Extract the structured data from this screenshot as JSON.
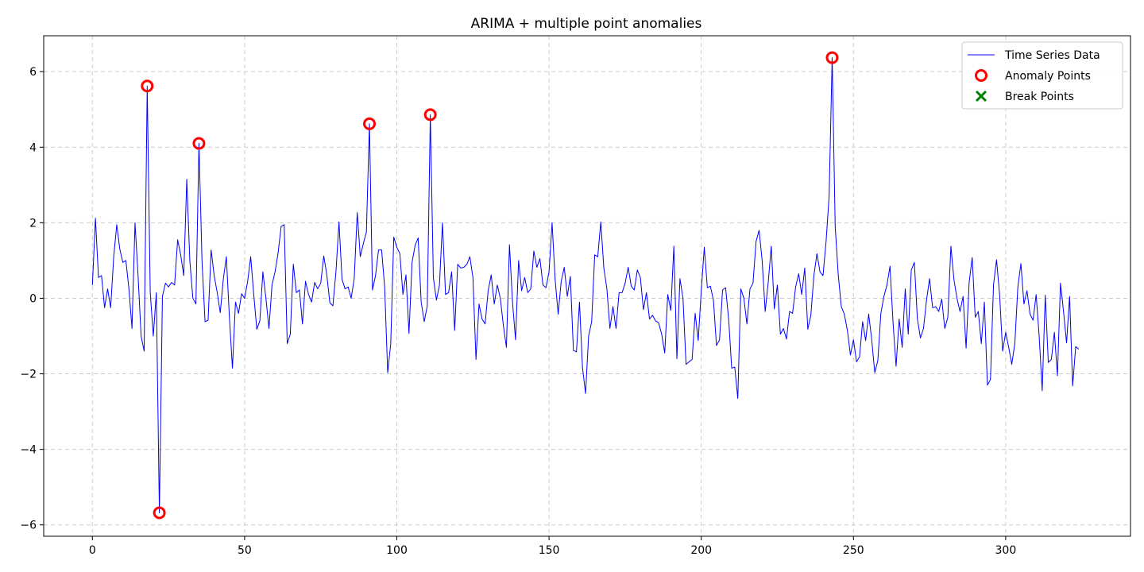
{
  "chart_data": {
    "type": "line",
    "title": "ARIMA + multiple point anomalies",
    "xlabel": "",
    "ylabel": "",
    "xlim": [
      -16,
      341
    ],
    "ylim": [
      -6.3,
      6.95
    ],
    "x_ticks": [
      0,
      50,
      100,
      150,
      200,
      250,
      300
    ],
    "y_ticks": [
      -6,
      -4,
      -2,
      0,
      2,
      4,
      6
    ],
    "x_tick_labels": [
      "0",
      "50",
      "100",
      "150",
      "200",
      "250",
      "300"
    ],
    "y_tick_labels": [
      "−6",
      "−4",
      "−2",
      "0",
      "2",
      "4",
      "6"
    ],
    "grid": true,
    "legend_position": "top-right",
    "series": [
      {
        "name": "Time Series Data",
        "kind": "line",
        "color": "#0000ff",
        "y": [
          0.35,
          2.12,
          0.55,
          0.6,
          -0.25,
          0.25,
          -0.25,
          1.1,
          1.95,
          1.3,
          0.95,
          1.0,
          0.25,
          -0.8,
          2.0,
          0.6,
          -1.0,
          -1.4,
          5.62,
          0.15,
          -1.0,
          0.15,
          -5.68,
          0.05,
          0.4,
          0.3,
          0.42,
          0.35,
          1.55,
          1.15,
          0.6,
          3.15,
          1.0,
          0.0,
          -0.15,
          4.1,
          1.0,
          -0.62,
          -0.58,
          1.28,
          0.6,
          0.15,
          -0.38,
          0.5,
          1.1,
          -0.5,
          -1.85,
          -0.1,
          -0.4,
          0.12,
          0.0,
          0.45,
          1.1,
          0.1,
          -0.82,
          -0.6,
          0.7,
          0.0,
          -0.8,
          0.35,
          0.7,
          1.2,
          1.9,
          1.95,
          -1.2,
          -0.95,
          0.9,
          0.15,
          0.22,
          -0.68,
          0.45,
          0.1,
          -0.1,
          0.42,
          0.25,
          0.4,
          1.12,
          0.62,
          -0.12,
          -0.2,
          0.7,
          2.02,
          0.5,
          0.25,
          0.3,
          0.0,
          0.52,
          2.27,
          1.1,
          1.45,
          1.75,
          4.62,
          0.22,
          0.6,
          1.28,
          1.28,
          0.3,
          -1.97,
          -1.2,
          1.62,
          1.35,
          1.18,
          0.1,
          0.62,
          -0.93,
          0.95,
          1.4,
          1.6,
          -0.1,
          -0.62,
          -0.2,
          4.86,
          0.55,
          -0.05,
          0.35,
          2.0,
          0.1,
          0.15,
          0.7,
          -0.85,
          0.9,
          0.8,
          0.82,
          0.9,
          1.1,
          0.55,
          -1.62,
          -0.15,
          -0.55,
          -0.68,
          0.2,
          0.62,
          -0.15,
          0.35,
          0.0,
          -0.72,
          -1.3,
          1.42,
          -0.1,
          -1.1,
          1.0,
          0.2,
          0.55,
          0.15,
          0.25,
          1.25,
          0.82,
          1.05,
          0.35,
          0.28,
          0.7,
          2.0,
          0.5,
          -0.42,
          0.45,
          0.82,
          0.05,
          0.58,
          -1.38,
          -1.42,
          -0.1,
          -1.85,
          -2.52,
          -1.0,
          -0.62,
          1.15,
          1.1,
          2.02,
          0.8,
          0.25,
          -0.8,
          -0.22,
          -0.8,
          0.15,
          0.15,
          0.4,
          0.82,
          0.32,
          0.22,
          0.75,
          0.55,
          -0.3,
          0.15,
          -0.55,
          -0.45,
          -0.6,
          -0.65,
          -0.95,
          -1.45,
          0.1,
          -0.32,
          1.38,
          -1.6,
          0.52,
          0.0,
          -1.75,
          -1.68,
          -1.62,
          -0.4,
          -1.12,
          0.2,
          1.35,
          0.28,
          0.32,
          -0.05,
          -1.25,
          -1.1,
          0.22,
          0.28,
          -0.55,
          -1.85,
          -1.82,
          -2.65,
          0.25,
          0.0,
          -0.68,
          0.25,
          0.4,
          1.5,
          1.8,
          1.0,
          -0.35,
          0.42,
          1.38,
          -0.28,
          0.35,
          -0.95,
          -0.8,
          -1.08,
          -0.35,
          -0.4,
          0.3,
          0.65,
          0.1,
          0.8,
          -0.82,
          -0.45,
          0.6,
          1.18,
          0.7,
          0.6,
          1.5,
          2.7,
          6.37,
          1.9,
          0.62,
          -0.22,
          -0.42,
          -0.85,
          -1.5,
          -1.1,
          -1.68,
          -1.55,
          -0.62,
          -1.12,
          -0.42,
          -1.1,
          -1.97,
          -1.65,
          -0.4,
          0.05,
          0.35,
          0.85,
          -0.65,
          -1.8,
          -0.55,
          -1.3,
          0.25,
          -0.95,
          0.75,
          0.95,
          -0.55,
          -1.05,
          -0.8,
          -0.05,
          0.52,
          -0.25,
          -0.22,
          -0.35,
          -0.02,
          -0.8,
          -0.5,
          1.38,
          0.5,
          0.0,
          -0.35,
          0.05,
          -1.32,
          0.42,
          1.08,
          -0.5,
          -0.35,
          -1.2,
          -0.1,
          -2.3,
          -2.15,
          0.35,
          1.02,
          0.1,
          -1.4,
          -0.9,
          -1.3,
          -1.75,
          -1.2,
          0.3,
          0.92,
          -0.15,
          0.2,
          -0.42,
          -0.58,
          0.1,
          -1.0,
          -2.45,
          0.08,
          -1.7,
          -1.62,
          -0.9,
          -2.05,
          0.4,
          -0.35,
          -1.18,
          0.05,
          -2.32,
          -1.28,
          -1.35
        ]
      },
      {
        "name": "Anomaly Points",
        "kind": "scatter",
        "marker": "circle",
        "color": "#ff0000",
        "points": [
          [
            18,
            5.62
          ],
          [
            22,
            -5.68
          ],
          [
            35,
            4.1
          ],
          [
            91,
            4.62
          ],
          [
            111,
            4.86
          ],
          [
            243,
            6.37
          ]
        ]
      },
      {
        "name": "Break Points",
        "kind": "scatter",
        "marker": "x",
        "color": "#008000",
        "points": []
      }
    ]
  }
}
